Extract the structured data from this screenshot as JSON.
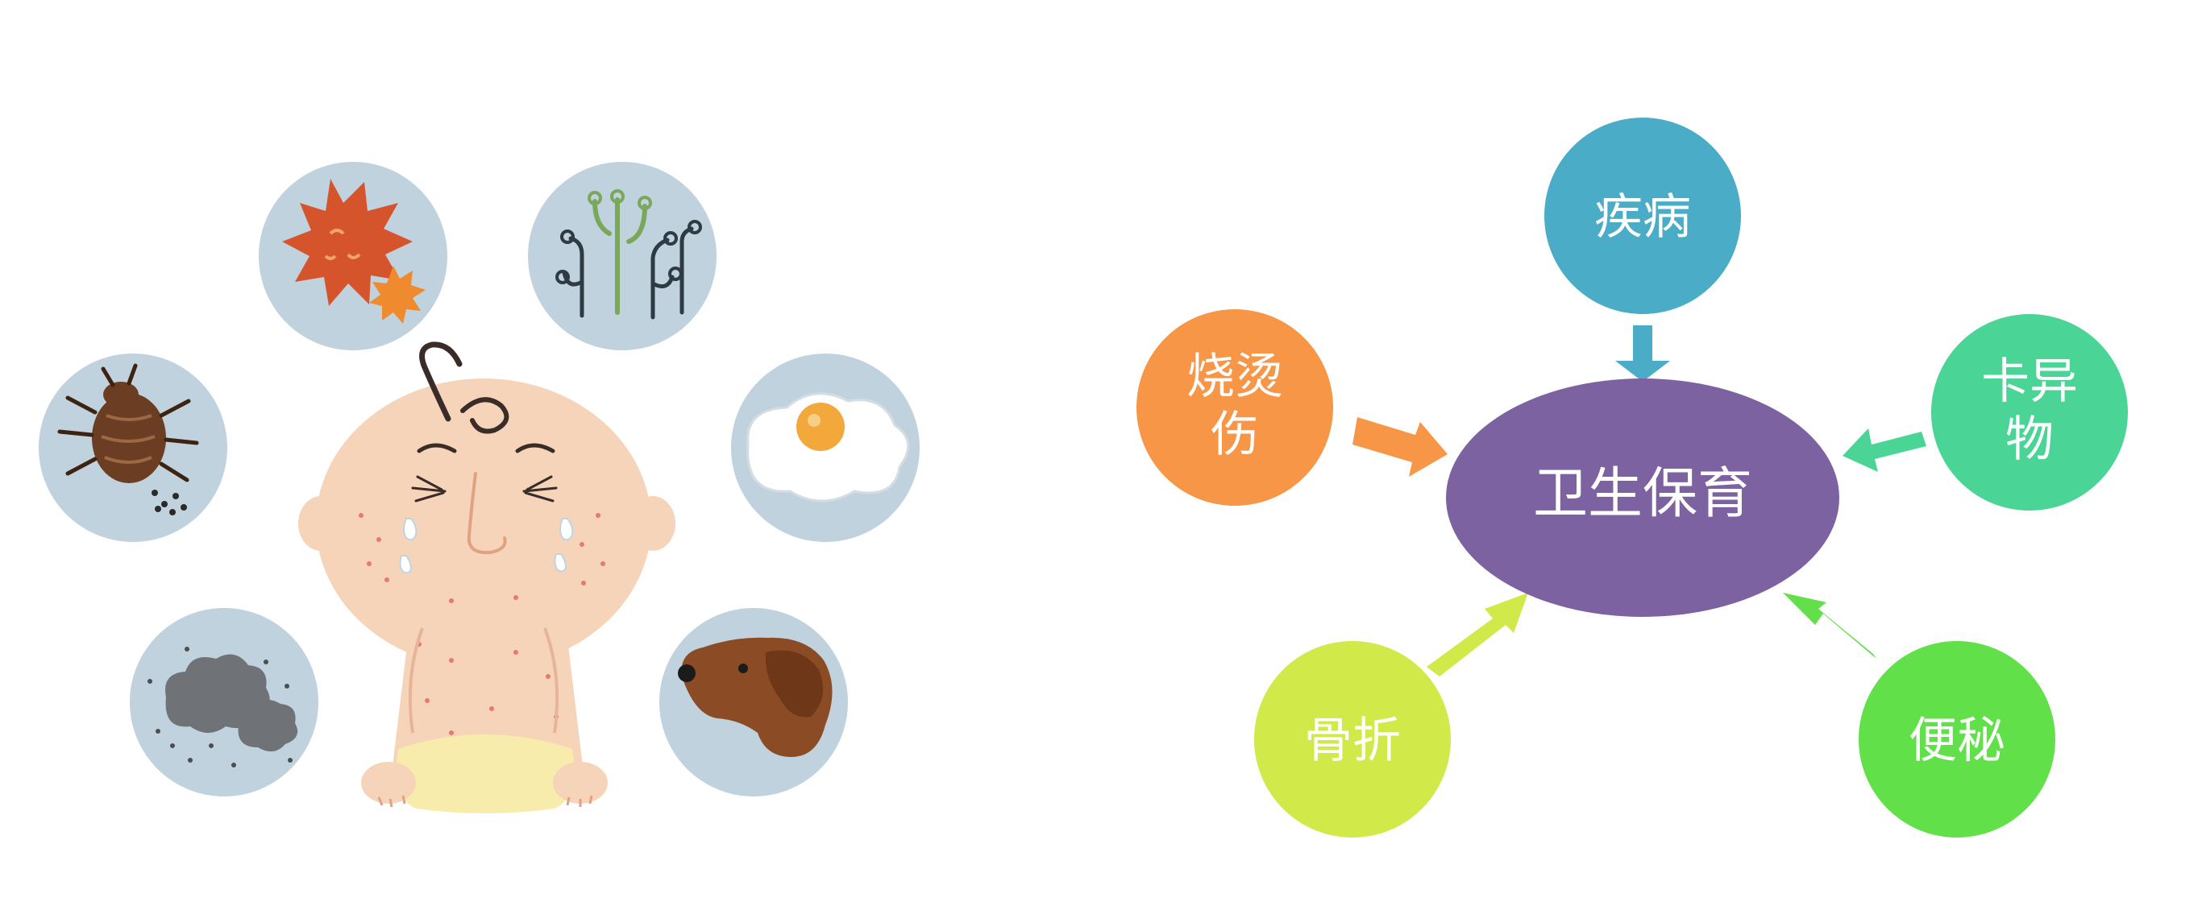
{
  "illustration": {
    "icons": [
      "virus-icon",
      "pollen-icon",
      "dust-mite-icon",
      "egg-icon",
      "dust-cloud-icon",
      "dog-icon"
    ],
    "colors": {
      "bubble": "#c0d2dd",
      "skin": "#f6d4b9",
      "diaper": "#f7ecab"
    }
  },
  "diagram": {
    "center": {
      "label": "卫生保育",
      "color": "#7c62a1"
    },
    "nodes": [
      {
        "id": "disease",
        "lines": [
          "疾病"
        ],
        "color": "#4aacc6"
      },
      {
        "id": "burn",
        "lines": [
          "烧烫",
          "伤"
        ],
        "color": "#f79646"
      },
      {
        "id": "foreign-body",
        "lines": [
          "卡异",
          "物"
        ],
        "color": "#4ad495"
      },
      {
        "id": "fracture",
        "lines": [
          "骨折"
        ],
        "color": "#d2e94a"
      },
      {
        "id": "constipation",
        "lines": [
          "便秘"
        ],
        "color": "#62e04a"
      }
    ]
  }
}
